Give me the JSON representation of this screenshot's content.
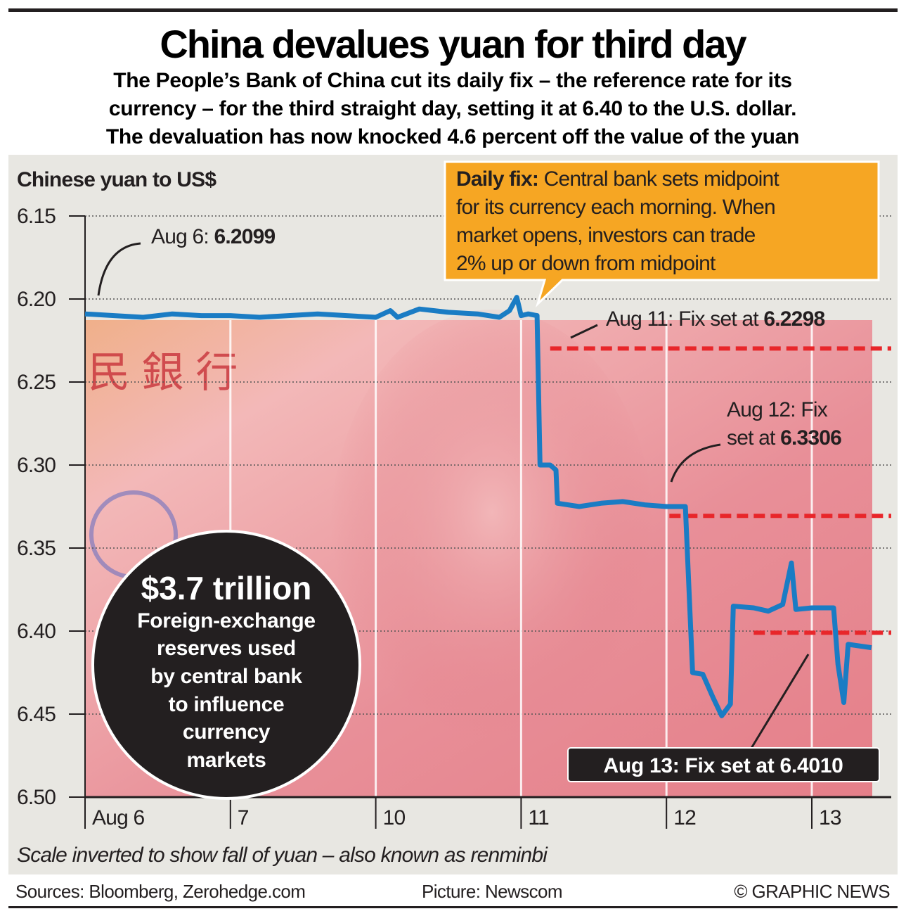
{
  "header": {
    "title": "China devalues yuan for third day",
    "subtitle_lines": [
      "The People’s Bank of China cut its daily fix – the reference rate for its",
      "currency – for the third straight day, setting it at 6.40 to the U.S. dollar.",
      "The devaluation has now knocked 4.6 percent off the value of the yuan"
    ]
  },
  "chart_data": {
    "type": "line",
    "title": "China devalues yuan for third day",
    "ylabel": "Chinese yuan to US$",
    "xlabel": "",
    "ylim": [
      6.5,
      6.15
    ],
    "inverted": true,
    "yticks": [
      "6.15",
      "6.20",
      "6.25",
      "6.30",
      "6.35",
      "6.40",
      "6.45",
      "6.50"
    ],
    "ytick_values": [
      6.15,
      6.2,
      6.25,
      6.3,
      6.35,
      6.4,
      6.45,
      6.5
    ],
    "xticks": [
      "Aug 6",
      "7",
      "10",
      "11",
      "12",
      "13"
    ],
    "grid": true,
    "series": [
      {
        "name": "Yuan to US$",
        "color": "#1a7cc4",
        "points": [
          [
            0,
            6.209
          ],
          [
            0.2,
            6.21
          ],
          [
            0.4,
            6.211
          ],
          [
            0.6,
            6.209
          ],
          [
            0.8,
            6.21
          ],
          [
            1.0,
            6.21
          ],
          [
            1.2,
            6.211
          ],
          [
            1.4,
            6.21
          ],
          [
            1.6,
            6.209
          ],
          [
            1.8,
            6.21
          ],
          [
            2.0,
            6.211
          ],
          [
            2.1,
            6.207
          ],
          [
            2.15,
            6.211
          ],
          [
            2.3,
            6.206
          ],
          [
            2.5,
            6.208
          ],
          [
            2.7,
            6.209
          ],
          [
            2.85,
            6.211
          ],
          [
            2.92,
            6.207
          ],
          [
            2.97,
            6.199
          ],
          [
            3.0,
            6.21
          ],
          [
            3.05,
            6.209
          ],
          [
            3.11,
            6.21
          ],
          [
            3.13,
            6.3
          ],
          [
            3.2,
            6.3
          ],
          [
            3.24,
            6.303
          ],
          [
            3.25,
            6.323
          ],
          [
            3.4,
            6.325
          ],
          [
            3.55,
            6.323
          ],
          [
            3.7,
            6.322
          ],
          [
            3.85,
            6.324
          ],
          [
            4.0,
            6.325
          ],
          [
            4.13,
            6.325
          ],
          [
            4.18,
            6.425
          ],
          [
            4.25,
            6.426
          ],
          [
            4.32,
            6.44
          ],
          [
            4.38,
            6.451
          ],
          [
            4.44,
            6.444
          ],
          [
            4.46,
            6.385
          ],
          [
            4.6,
            6.386
          ],
          [
            4.7,
            6.388
          ],
          [
            4.8,
            6.384
          ],
          [
            4.86,
            6.359
          ],
          [
            4.89,
            6.387
          ],
          [
            5.0,
            6.386
          ],
          [
            5.15,
            6.386
          ],
          [
            5.18,
            6.42
          ],
          [
            5.22,
            6.443
          ],
          [
            5.25,
            6.408
          ],
          [
            5.41,
            6.41
          ]
        ]
      }
    ],
    "fix_lines": [
      {
        "label": "Aug 11: Fix set at ",
        "value_text": "6.2298",
        "value": 6.2298,
        "from_day": 3.2
      },
      {
        "label": "Aug 12: Fix set at ",
        "value_text": "6.3306",
        "value": 6.3306,
        "from_day": 4.02
      },
      {
        "label": "Aug 13: Fix set at 6.4010",
        "value_text": "6.4010",
        "value": 6.401,
        "from_day": 4.6
      }
    ],
    "annotations": {
      "aug6_label": "Aug 6: ",
      "aug6_value": "6.2099",
      "aug12_line1": "Aug 12: Fix",
      "aug12_line2": "set at ",
      "callout_bold": "Daily fix:",
      "callout_lines": [
        " Central bank sets midpoint",
        "for its currency each morning. When",
        "market opens, investors can trade",
        "2% up or down from midpoint"
      ],
      "reserves_value": "$3.7 trillion",
      "reserves_lines": [
        "Foreign-exchange",
        "reserves used",
        "by central bank",
        "to influence",
        "currency",
        "markets"
      ]
    }
  },
  "footer": {
    "note": "Scale inverted to show fall of yuan – also known as renminbi",
    "sources": "Sources: Bloomberg, Zerohedge.com",
    "picture": "Picture: Newscom",
    "credit": "© GRAPHIC NEWS"
  },
  "colors": {
    "line": "#1a7cc4",
    "fix": "#e8262a",
    "callout": "#f6a623",
    "panel": "#e8e7e2"
  }
}
